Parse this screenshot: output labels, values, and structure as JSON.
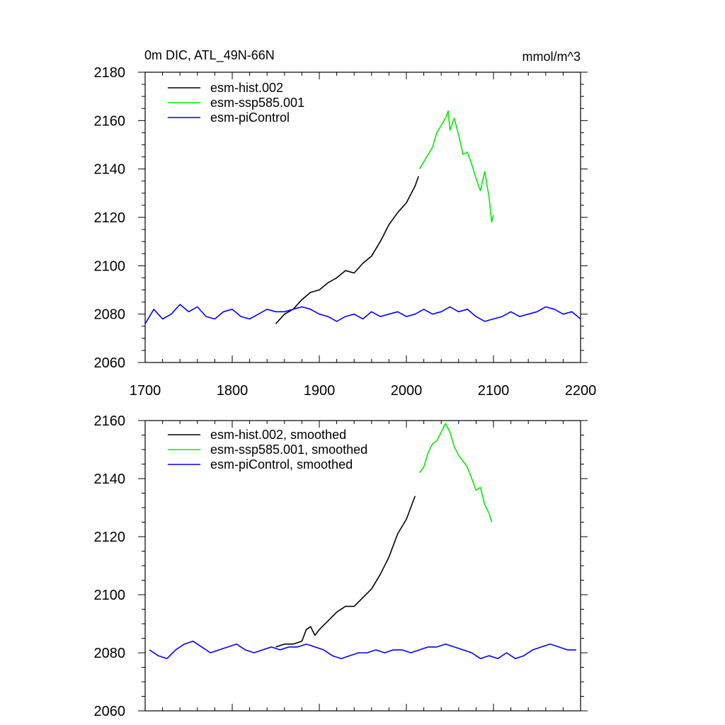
{
  "chart_data": [
    {
      "type": "line",
      "title": "0m DIC, ATL_49N-66N",
      "units": "mmol/m^3",
      "xlim": [
        1700,
        2200
      ],
      "ylim": [
        2060,
        2180
      ],
      "xticks": [
        "1700",
        "1800",
        "1900",
        "2000",
        "2100",
        "2200"
      ],
      "yticks": [
        "2060",
        "2080",
        "2100",
        "2120",
        "2140",
        "2160",
        "2180"
      ],
      "legend_position": "top-left",
      "series": [
        {
          "name": "esm-hist.002",
          "color": "#000000",
          "x": [
            1850,
            1860,
            1870,
            1880,
            1890,
            1900,
            1910,
            1920,
            1930,
            1940,
            1950,
            1960,
            1970,
            1980,
            1990,
            2000,
            2010,
            2014
          ],
          "y": [
            2076,
            2080,
            2082,
            2086,
            2089,
            2090,
            2093,
            2095,
            2098,
            2097,
            2101,
            2104,
            2110,
            2117,
            2122,
            2126,
            2133,
            2137
          ]
        },
        {
          "name": "esm-ssp585.001",
          "color": "#00ee00",
          "x": [
            2015,
            2020,
            2025,
            2030,
            2035,
            2040,
            2045,
            2048,
            2050,
            2055,
            2060,
            2065,
            2070,
            2075,
            2080,
            2085,
            2090,
            2095,
            2098,
            2100
          ],
          "y": [
            2140,
            2143,
            2146,
            2149,
            2155,
            2158,
            2161,
            2164,
            2156,
            2161,
            2154,
            2146,
            2147,
            2142,
            2136,
            2131,
            2139,
            2128,
            2118,
            2121
          ]
        },
        {
          "name": "esm-piControl",
          "color": "#0000ff",
          "x": [
            1700,
            1710,
            1720,
            1730,
            1740,
            1750,
            1760,
            1770,
            1780,
            1790,
            1800,
            1810,
            1820,
            1830,
            1840,
            1850,
            1860,
            1870,
            1880,
            1890,
            1900,
            1910,
            1920,
            1930,
            1940,
            1950,
            1960,
            1970,
            1980,
            1990,
            2000,
            2010,
            2020,
            2030,
            2040,
            2050,
            2060,
            2070,
            2080,
            2090,
            2100,
            2110,
            2120,
            2130,
            2140,
            2150,
            2160,
            2170,
            2180,
            2190,
            2200
          ],
          "y": [
            2076,
            2082,
            2078,
            2080,
            2084,
            2081,
            2083,
            2079,
            2078,
            2081,
            2082,
            2079,
            2078,
            2080,
            2082,
            2081,
            2081,
            2082,
            2083,
            2082,
            2080,
            2079,
            2077,
            2079,
            2080,
            2078,
            2081,
            2079,
            2080,
            2081,
            2079,
            2080,
            2082,
            2080,
            2081,
            2083,
            2081,
            2082,
            2079,
            2077,
            2078,
            2079,
            2081,
            2079,
            2080,
            2081,
            2083,
            2082,
            2080,
            2081,
            2078
          ]
        }
      ]
    },
    {
      "type": "line",
      "title": "",
      "xlim": [
        1700,
        2200
      ],
      "ylim": [
        2060,
        2160
      ],
      "yticks": [
        "2060",
        "2080",
        "2100",
        "2120",
        "2140",
        "2160"
      ],
      "legend_position": "top-left",
      "series": [
        {
          "name": "esm-hist.002, smoothed",
          "color": "#000000",
          "x": [
            1850,
            1860,
            1870,
            1880,
            1885,
            1890,
            1895,
            1900,
            1910,
            1920,
            1930,
            1940,
            1950,
            1960,
            1970,
            1980,
            1990,
            2000,
            2010
          ],
          "y": [
            2082,
            2083,
            2083,
            2084,
            2088,
            2089,
            2086,
            2088,
            2091,
            2094,
            2096,
            2096,
            2099,
            2102,
            2107,
            2113,
            2121,
            2126,
            2134
          ]
        },
        {
          "name": "esm-ssp585.001, smoothed",
          "color": "#00ee00",
          "x": [
            2015,
            2020,
            2025,
            2030,
            2035,
            2040,
            2045,
            2050,
            2055,
            2060,
            2065,
            2070,
            2075,
            2080,
            2085,
            2090,
            2095,
            2098
          ],
          "y": [
            2142,
            2144,
            2149,
            2152,
            2153,
            2156,
            2159,
            2156,
            2151,
            2148,
            2146,
            2144,
            2140,
            2136,
            2137,
            2131,
            2128,
            2125
          ]
        },
        {
          "name": "esm-piControl, smoothed",
          "color": "#0000ff",
          "x": [
            1705,
            1715,
            1725,
            1735,
            1745,
            1755,
            1765,
            1775,
            1785,
            1795,
            1805,
            1815,
            1825,
            1835,
            1845,
            1855,
            1865,
            1875,
            1885,
            1895,
            1905,
            1915,
            1925,
            1935,
            1945,
            1955,
            1965,
            1975,
            1985,
            1995,
            2005,
            2015,
            2025,
            2035,
            2045,
            2055,
            2065,
            2075,
            2085,
            2095,
            2105,
            2115,
            2125,
            2135,
            2145,
            2155,
            2165,
            2175,
            2185,
            2195
          ],
          "y": [
            2081,
            2079,
            2078,
            2081,
            2083,
            2084,
            2082,
            2080,
            2081,
            2082,
            2083,
            2081,
            2080,
            2081,
            2082,
            2081,
            2082,
            2082,
            2083,
            2082,
            2081,
            2079,
            2078,
            2079,
            2080,
            2080,
            2081,
            2080,
            2081,
            2081,
            2080,
            2081,
            2082,
            2082,
            2083,
            2082,
            2081,
            2080,
            2078,
            2079,
            2078,
            2080,
            2078,
            2079,
            2081,
            2082,
            2083,
            2082,
            2081,
            2081
          ]
        }
      ]
    }
  ]
}
